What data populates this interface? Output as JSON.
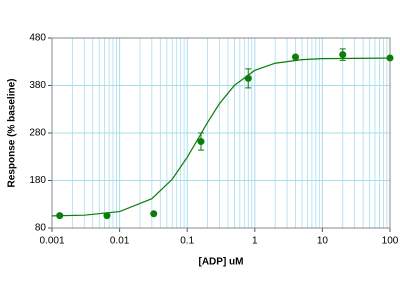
{
  "chart_data": {
    "type": "scatter",
    "x_label": "[ADP] uM",
    "y_label": "Response (% baseline)",
    "log_x": true,
    "grid": true,
    "xlim": [
      0.001,
      100
    ],
    "xticks": [
      0.001,
      0.01,
      0.1,
      1,
      10,
      100
    ],
    "ylim": [
      80,
      480
    ],
    "yticks": [
      80,
      180,
      280,
      380,
      480
    ],
    "series": [
      {
        "color": "#0a7d0a",
        "x": [
          0.0013,
          0.0065,
          0.032,
          0.16,
          0.8,
          4,
          20,
          100
        ],
        "values": [
          106,
          106,
          110,
          262,
          395,
          440,
          445,
          438
        ],
        "errors": [
          null,
          null,
          null,
          18,
          20,
          null,
          12,
          null
        ]
      }
    ],
    "fit": {
      "color": "#0a7d0a",
      "x": [
        0.001,
        0.003,
        0.01,
        0.03,
        0.06,
        0.1,
        0.15,
        0.2,
        0.3,
        0.5,
        1,
        2,
        5,
        10,
        100
      ],
      "values": [
        105.5,
        107,
        114.6,
        141.6,
        182.6,
        228.8,
        271.5,
        302.3,
        341.8,
        380.4,
        411.9,
        426.9,
        434.5,
        436.6,
        437.8
      ]
    }
  }
}
